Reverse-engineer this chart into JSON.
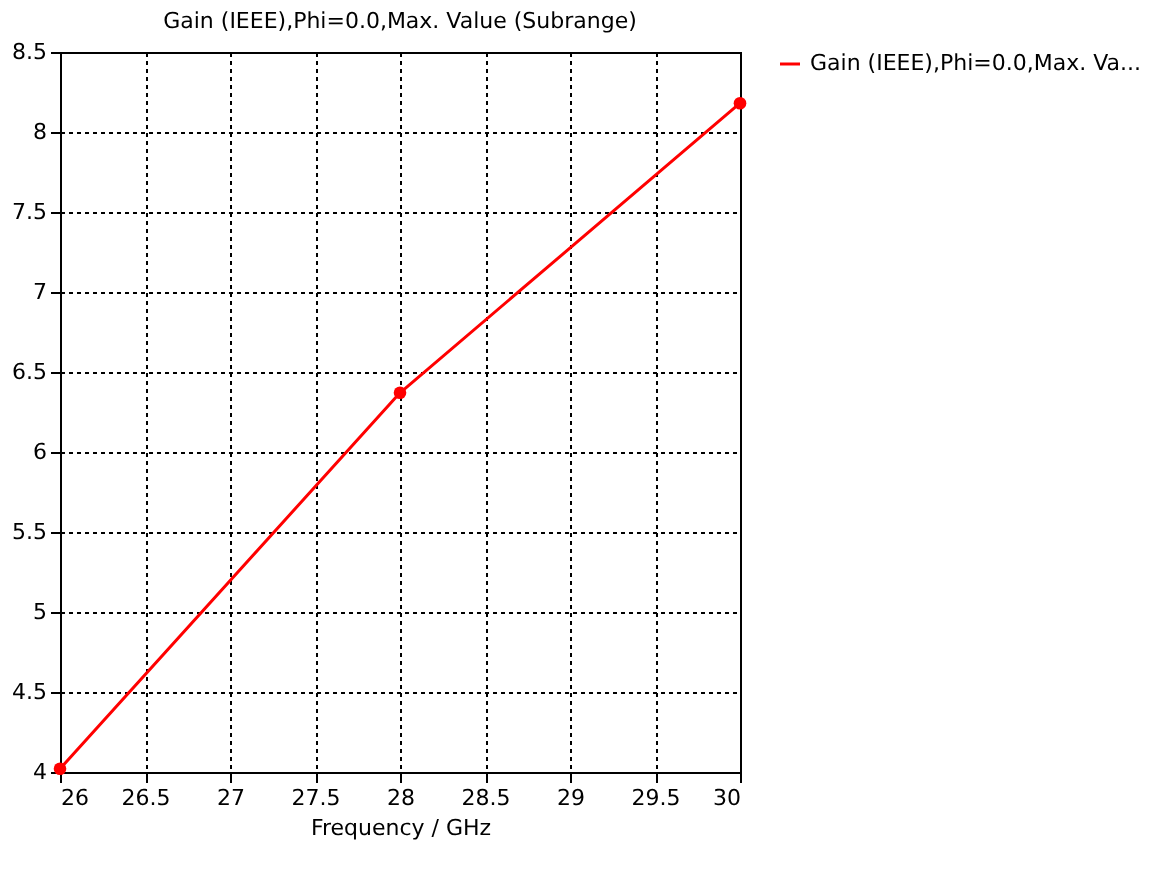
{
  "chart_data": {
    "type": "line",
    "title": "Gain (IEEE),Phi=0.0,Max. Value (Subrange)",
    "xlabel": "Frequency / GHz",
    "x": [
      26,
      28,
      30
    ],
    "series": [
      {
        "name": "Gain (IEEE),Phi=0.0,Max. Va...",
        "color": "#ff0000",
        "values": [
          4.02,
          6.37,
          8.18
        ]
      }
    ],
    "xlim": [
      26,
      30
    ],
    "xticks": [
      26,
      26.5,
      27,
      27.5,
      28,
      28.5,
      29,
      29.5,
      30
    ],
    "ylim": [
      4,
      8.5
    ],
    "yticks": [
      4,
      4.5,
      5,
      5.5,
      6,
      6.5,
      7,
      7.5,
      8,
      8.5
    ],
    "grid": true,
    "legend": "top right",
    "marker": "circle",
    "line_style": "solid"
  }
}
